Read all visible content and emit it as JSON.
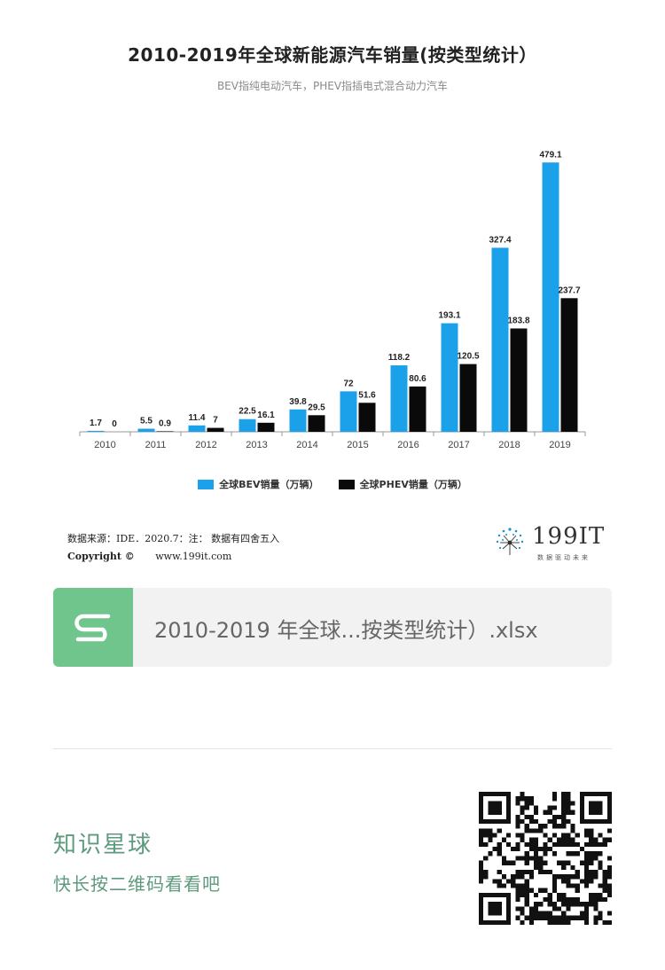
{
  "chart_data": {
    "type": "bar",
    "title": "2010-2019年全球新能源汽车销量(按类型统计）",
    "subtitle": "BEV指纯电动汽车，PHEV指插电式混合动力汽车",
    "categories": [
      "2010",
      "2011",
      "2012",
      "2013",
      "2014",
      "2015",
      "2016",
      "2017",
      "2018",
      "2019"
    ],
    "series": [
      {
        "name": "全球BEV销量（万辆）",
        "color": "#1aa1ea",
        "values": [
          1.7,
          5.5,
          11.4,
          22.5,
          39.8,
          72,
          118.2,
          193.1,
          327.4,
          479.1
        ],
        "labels": [
          "1.7",
          "5.5",
          "11.4",
          "22.5",
          "39.8",
          "72",
          "118.2",
          "193.1",
          "327.4",
          "479.1"
        ]
      },
      {
        "name": "全球PHEV销量（万辆）",
        "color": "#0a0a0a",
        "values": [
          0,
          0.9,
          7,
          16.1,
          29.5,
          51.6,
          80.6,
          120.5,
          183.8,
          237.7
        ],
        "labels": [
          "0",
          "0.9",
          "7",
          "16.1",
          "29.5",
          "51.6",
          "80.6",
          "120.5",
          "183.8",
          "237.7"
        ]
      }
    ],
    "ylim": [
      0,
      500
    ],
    "grid": false,
    "legend_position": "bottom-center"
  },
  "footer": {
    "source": "数据来源：IDE．2020.7：注：  数据有四舍五入",
    "copyright": "Copyright ©",
    "site": "www.199it.com",
    "brand": "199IT",
    "brand_tag": "数据驱动未来"
  },
  "file_card": {
    "name": "2010-2019 年全球...按类型统计）.xlsx",
    "icon": "spreadsheet-s-icon"
  },
  "promo": {
    "title": "知识星球",
    "prompt": "快长按二维码看看吧",
    "qr_icon": "qr-code-icon"
  },
  "colors": {
    "bev": "#1aa1ea",
    "phev": "#0a0a0a",
    "file_icon": "#6fc58c",
    "promo_text": "#5e9a7d"
  }
}
